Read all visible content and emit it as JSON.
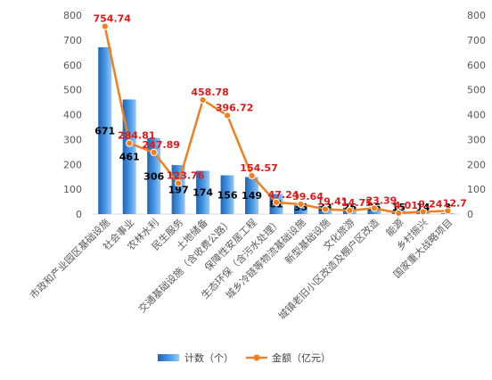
{
  "chart_data": {
    "type": "bar+line",
    "categories": [
      "市政和产业园区基础设施",
      "社会事业",
      "农林水利",
      "民生服务",
      "土地储备",
      "交通基础设施（含收费公路）",
      "保障性安居工程",
      "生态环保（含污水处理）",
      "城乡冷链等物流基础设施",
      "新型基础设施",
      "文化旅游",
      "城镇老旧小区改造及棚户区改造",
      "能源",
      "乡村振兴",
      "国家重大战略项目"
    ],
    "series": [
      {
        "name": "计数（个）",
        "kind": "bar",
        "axis": "left",
        "color": "#2e7fd0",
        "values": [
          671,
          461,
          306,
          197,
          174,
          156,
          149,
          81,
          35,
          33,
          26,
          25,
          15,
          14,
          3
        ],
        "labels": [
          "671",
          "461",
          "306",
          "197",
          "174",
          "156",
          "149",
          "81",
          "35",
          "33",
          "26",
          "25",
          "15",
          "14",
          "3"
        ]
      },
      {
        "name": "金额（亿元）",
        "kind": "line",
        "axis": "right",
        "color": "#f07f1e",
        "values": [
          754.74,
          284.81,
          247.89,
          123.76,
          458.78,
          396.72,
          154.57,
          47.24,
          39.64,
          19.41,
          14.75,
          23.39,
          4.01,
          9.24,
          12.7
        ],
        "labels": [
          "754.74",
          "284.81",
          "247.89",
          "123.76",
          "458.78",
          "396.72",
          "154.57",
          "47.24",
          "39.64",
          "19.41",
          "14.75",
          "23.39",
          "4.01",
          "9.24",
          "12.7"
        ]
      }
    ],
    "ylim": [
      0,
      800
    ],
    "y2lim": [
      0,
      800
    ],
    "yticks": [
      "0",
      "100",
      "200",
      "300",
      "400",
      "500",
      "600",
      "700",
      "800"
    ],
    "grid": false,
    "legend": "bottom"
  }
}
